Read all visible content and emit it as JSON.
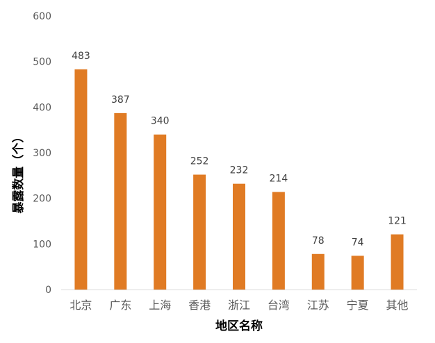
{
  "chart_data": {
    "type": "bar",
    "title": "",
    "xlabel": "地区名称",
    "ylabel": "暴露数量（个）",
    "categories": [
      "北京",
      "广东",
      "上海",
      "香港",
      "浙江",
      "台湾",
      "江苏",
      "宁夏",
      "其他"
    ],
    "values": [
      483,
      387,
      340,
      252,
      232,
      214,
      78,
      74,
      121
    ],
    "ylim": [
      0,
      600
    ],
    "yticks": [
      0,
      100,
      200,
      300,
      400,
      500,
      600
    ],
    "grid": false,
    "legend": "none",
    "data_labels": true,
    "bar_color": "#E07B24",
    "axis_color": "#D9D9D9"
  }
}
